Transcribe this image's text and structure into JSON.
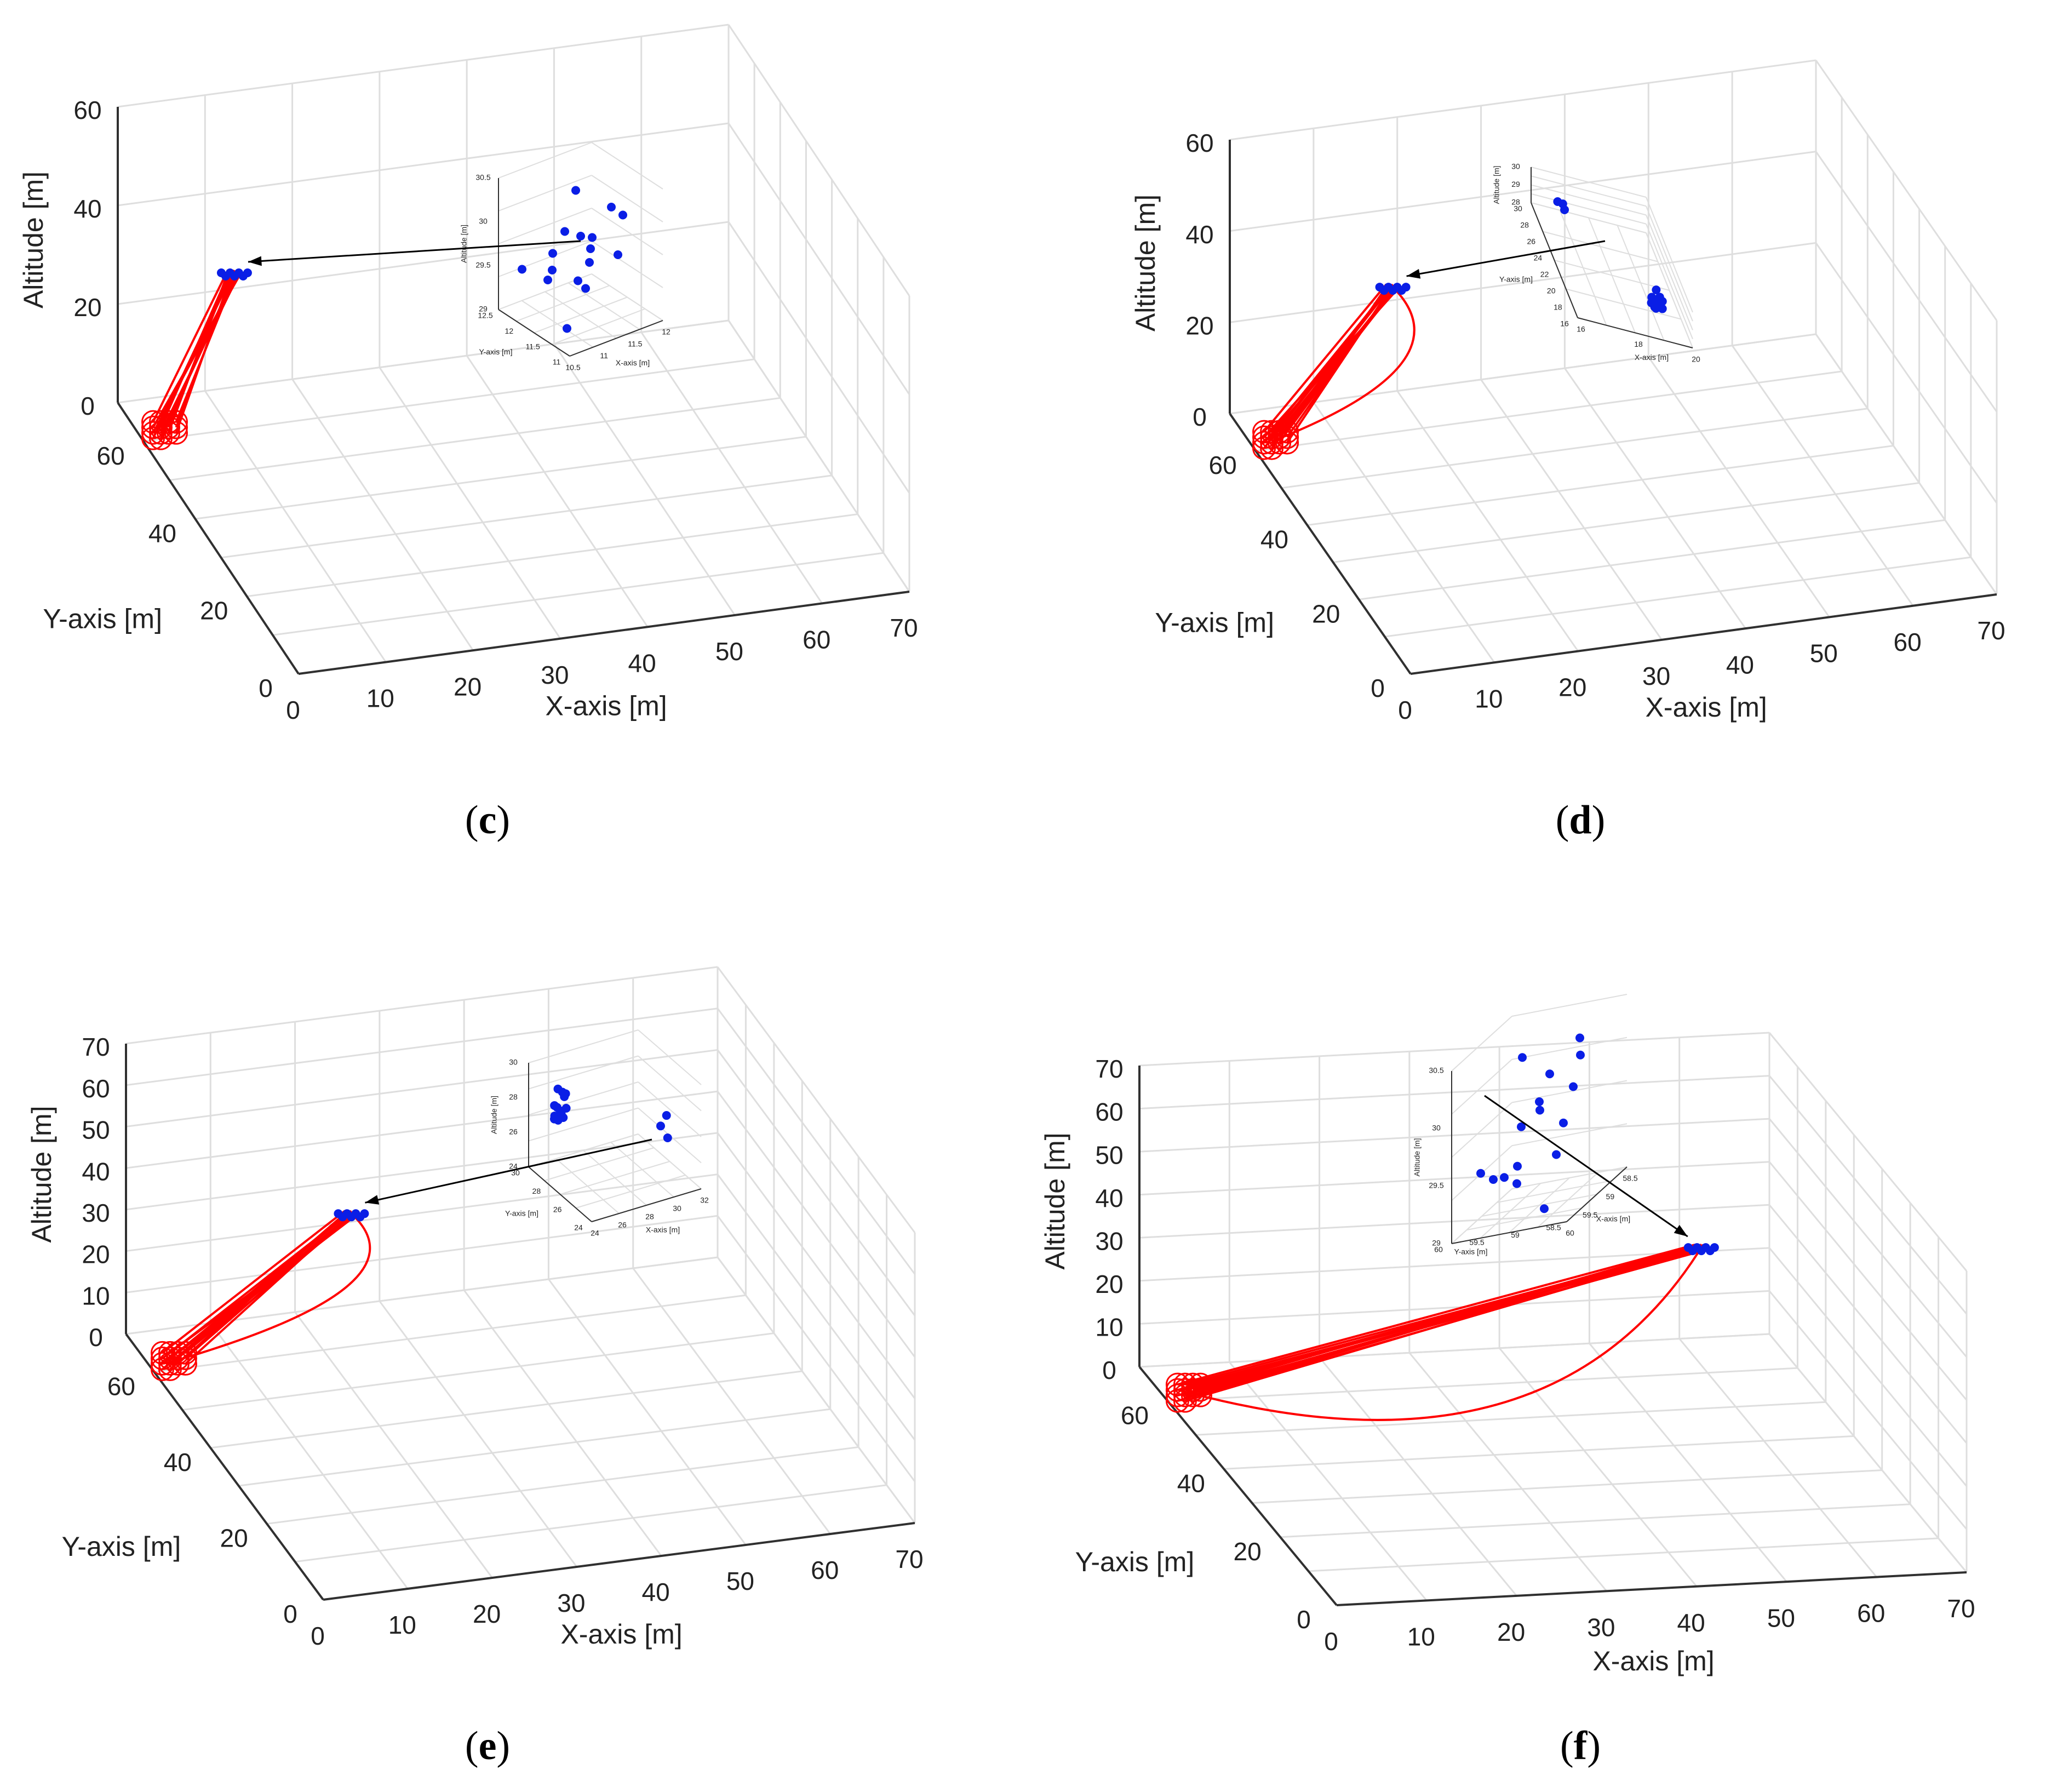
{
  "figure_captions": [
    "c",
    "d",
    "e",
    "f"
  ],
  "colors": {
    "trajectory": "#ff0000",
    "drone": "#0a1ee6",
    "grid": "#dedede",
    "axis": "#303030",
    "arrow": "#000000"
  },
  "chart_data": [
    {
      "panel": "c",
      "type": "scatter",
      "zlabel": "Altitude [m]",
      "ylabel": "Y-axis [m]",
      "xlabel": "X-axis [m]",
      "zticks": [
        "60",
        "40",
        "20",
        "0"
      ],
      "yticks": [
        "60",
        "40",
        "20",
        "0"
      ],
      "xticks": [
        "0",
        "10",
        "20",
        "30",
        "40",
        "50",
        "60",
        "70"
      ],
      "start_xy": [
        3,
        62
      ],
      "end_xy": [
        11,
        62
      ],
      "end_altitude": 30,
      "inset": {
        "zlabel": "Altitude [m]",
        "ylabel": "Y-axis [m]",
        "xlabel": "X-axis [m]",
        "zticks": [
          "30.5",
          "30",
          "29.5",
          "29"
        ],
        "yticks": [
          "12.5",
          "12",
          "11.5",
          "11"
        ],
        "xticks": [
          "10.5",
          "11",
          "11.5",
          "12"
        ],
        "clusters": [
          16
        ]
      }
    },
    {
      "panel": "d",
      "type": "scatter",
      "zlabel": "Altitude [m]",
      "ylabel": "Y-axis [m]",
      "xlabel": "X-axis [m]",
      "zticks": [
        "60",
        "40",
        "20",
        "0"
      ],
      "yticks": [
        "60",
        "40",
        "20",
        "0"
      ],
      "xticks": [
        "0",
        "10",
        "20",
        "30",
        "40",
        "50",
        "60",
        "70"
      ],
      "start_xy": [
        3,
        62
      ],
      "end_xy": [
        17,
        62
      ],
      "end_altitude": 30,
      "inset": {
        "zlabel": "Altitude [m]",
        "ylabel": "Y-axis [m]",
        "xlabel": "X-axis [m]",
        "zticks": [
          "30",
          "29",
          "28"
        ],
        "yticks": [
          "30",
          "28",
          "26",
          "24",
          "22",
          "20",
          "18",
          "16"
        ],
        "xticks": [
          "16",
          "18",
          "20"
        ],
        "clusters": [
          3,
          13
        ]
      }
    },
    {
      "panel": "e",
      "type": "scatter",
      "zlabel": "Altitude [m]",
      "ylabel": "Y-axis [m]",
      "xlabel": "X-axis [m]",
      "zticks": [
        "70",
        "60",
        "50",
        "40",
        "30",
        "20",
        "10",
        "0"
      ],
      "yticks": [
        "60",
        "40",
        "20",
        "0"
      ],
      "xticks": [
        "0",
        "10",
        "20",
        "30",
        "40",
        "50",
        "60",
        "70"
      ],
      "start_xy": [
        3,
        62
      ],
      "end_xy": [
        24,
        62
      ],
      "end_altitude": 30,
      "inset": {
        "zlabel": "Altitude [m]",
        "ylabel": "Y-axis [m]",
        "xlabel": "X-axis [m]",
        "zticks": [
          "30",
          "28",
          "26",
          "24"
        ],
        "yticks": [
          "30",
          "28",
          "26",
          "24"
        ],
        "xticks": [
          "24",
          "26",
          "28",
          "30",
          "32"
        ],
        "clusters": [
          13,
          3
        ]
      }
    },
    {
      "panel": "f",
      "type": "scatter",
      "zlabel": "Altitude [m]",
      "ylabel": "Y-axis [m]",
      "xlabel": "X-axis [m]",
      "zticks": [
        "70",
        "60",
        "50",
        "40",
        "30",
        "20",
        "10",
        "0"
      ],
      "yticks": [
        "60",
        "40",
        "20",
        "0"
      ],
      "xticks": [
        "0",
        "10",
        "20",
        "30",
        "40",
        "50",
        "60",
        "70"
      ],
      "start_xy": [
        3,
        62
      ],
      "end_xy": [
        59,
        59
      ],
      "end_altitude": 30,
      "inset": {
        "zlabel": "Altitude [m]",
        "ylabel": "Y-axis [m]",
        "xlabel": "X-axis [m]",
        "zticks": [
          "30.5",
          "30",
          "29.5",
          "29"
        ],
        "yticks": [
          "60",
          "59.5",
          "59",
          "58.5"
        ],
        "xticks": [
          "60",
          "59.5",
          "59",
          "58.5"
        ],
        "clusters": [
          16
        ]
      }
    }
  ]
}
